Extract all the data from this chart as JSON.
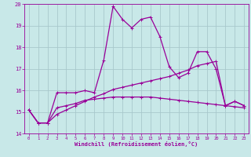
{
  "xlabel": "Windchill (Refroidissement éolien,°C)",
  "x_ticks": [
    0,
    1,
    2,
    3,
    4,
    5,
    6,
    7,
    8,
    9,
    10,
    11,
    12,
    13,
    14,
    15,
    16,
    17,
    18,
    19,
    20,
    21,
    22,
    23
  ],
  "ylim": [
    14,
    20
  ],
  "yticks": [
    14,
    15,
    16,
    17,
    18,
    19,
    20
  ],
  "bg_color": "#c8e8e8",
  "line_color": "#990099",
  "grid_color": "#a8c8cc",
  "line1_y": [
    15.1,
    14.5,
    14.5,
    15.9,
    15.9,
    15.9,
    16.0,
    15.9,
    17.4,
    19.9,
    19.3,
    18.9,
    19.3,
    19.4,
    18.5,
    17.1,
    16.6,
    16.8,
    17.8,
    17.8,
    17.0,
    15.3,
    15.5,
    15.3
  ],
  "line2_y": [
    15.1,
    14.5,
    14.5,
    15.2,
    15.3,
    15.4,
    15.55,
    15.6,
    15.65,
    15.7,
    15.7,
    15.7,
    15.7,
    15.7,
    15.65,
    15.6,
    15.55,
    15.5,
    15.45,
    15.4,
    15.35,
    15.3,
    15.25,
    15.2
  ],
  "line3_y": [
    15.1,
    14.5,
    14.5,
    14.9,
    15.1,
    15.3,
    15.5,
    15.7,
    15.85,
    16.05,
    16.15,
    16.25,
    16.35,
    16.45,
    16.55,
    16.65,
    16.8,
    16.95,
    17.15,
    17.25,
    17.35,
    15.3,
    15.5,
    15.3
  ]
}
